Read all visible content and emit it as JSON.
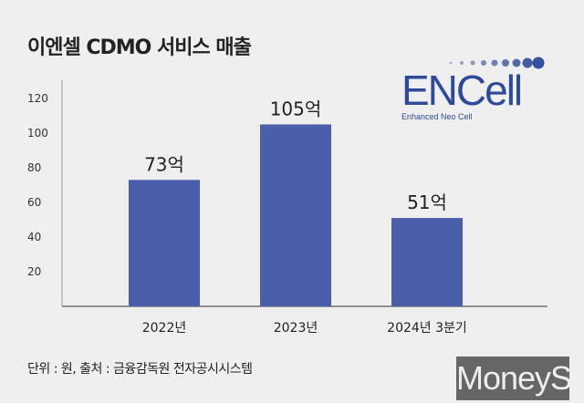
{
  "chart_data": {
    "type": "bar",
    "title": "이엔셀 CDMO 서비스 매출",
    "categories": [
      "2022년",
      "2023년",
      "2024년 3분기"
    ],
    "values": [
      73,
      105,
      51
    ],
    "data_labels": [
      "73억",
      "105억",
      "51억"
    ],
    "ylim": [
      0,
      120
    ],
    "yticks": [
      20,
      40,
      60,
      80,
      100,
      120
    ],
    "grid": false,
    "bar_color": "#4a5ea9"
  },
  "logo": {
    "name": "ENCell",
    "tagline": "Enhanced Neo Cell",
    "color": "#2f4a9a"
  },
  "footer": "단위 : 원, 출처 : 금융감독원 전자공시시스템",
  "watermark": "MoneyS"
}
